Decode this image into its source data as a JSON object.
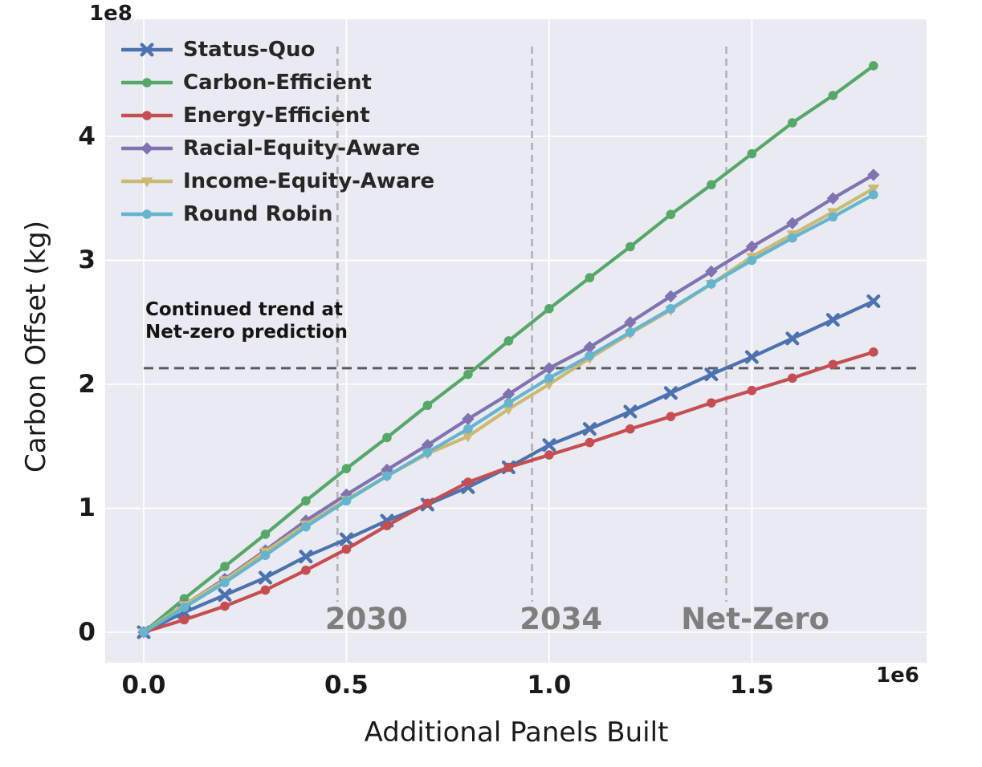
{
  "chart_data": {
    "type": "line",
    "xlabel": "Additional Panels Built",
    "ylabel": "Carbon Offset (kg)",
    "x_offset_label": "1e6",
    "y_offset_label": "1e8",
    "xlim": [
      -0.095,
      1.931
    ],
    "ylim": [
      -0.246,
      4.945
    ],
    "grid": true,
    "legend_position": "upper left",
    "xticks": {
      "values": [
        0.0,
        0.5,
        1.0,
        1.5
      ],
      "labels": [
        "0.0",
        "0.5",
        "1.0",
        "1.5"
      ]
    },
    "yticks": {
      "values": [
        0,
        1,
        2,
        3,
        4
      ],
      "labels": [
        "0",
        "1",
        "2",
        "3",
        "4"
      ]
    },
    "x": [
      0,
      0.1,
      0.2,
      0.3,
      0.4,
      0.5,
      0.6,
      0.7,
      0.8,
      0.9,
      1.0,
      1.1,
      1.2,
      1.3,
      1.4,
      1.5,
      1.6,
      1.7,
      1.8
    ],
    "series": [
      {
        "name": "Status-Quo",
        "color": "#4c72b0",
        "marker": "x",
        "values": [
          0,
          0.16,
          0.3,
          0.44,
          0.61,
          0.75,
          0.9,
          1.03,
          1.17,
          1.33,
          1.51,
          1.64,
          1.78,
          1.93,
          2.08,
          2.22,
          2.37,
          2.52,
          2.67
        ]
      },
      {
        "name": "Carbon-Efficient",
        "color": "#55a868",
        "marker": "circle",
        "values": [
          0,
          0.27,
          0.53,
          0.79,
          1.06,
          1.32,
          1.57,
          1.83,
          2.08,
          2.35,
          2.61,
          2.86,
          3.11,
          3.37,
          3.61,
          3.86,
          4.11,
          4.33,
          4.57
        ]
      },
      {
        "name": "Energy-Efficient",
        "color": "#c44e52",
        "marker": "circle",
        "values": [
          0,
          0.1,
          0.21,
          0.34,
          0.5,
          0.67,
          0.86,
          1.04,
          1.21,
          1.33,
          1.43,
          1.53,
          1.64,
          1.74,
          1.85,
          1.95,
          2.05,
          2.16,
          2.26
        ]
      },
      {
        "name": "Racial-Equity-Aware",
        "color": "#8172b2",
        "marker": "diamond",
        "values": [
          0,
          0.22,
          0.43,
          0.66,
          0.9,
          1.11,
          1.31,
          1.51,
          1.72,
          1.92,
          2.13,
          2.3,
          2.5,
          2.71,
          2.91,
          3.11,
          3.3,
          3.5,
          3.69
        ]
      },
      {
        "name": "Income-Equity-Aware",
        "color": "#ccb974",
        "marker": "triangle-down",
        "values": [
          0,
          0.22,
          0.42,
          0.65,
          0.87,
          1.07,
          1.26,
          1.44,
          1.58,
          1.8,
          2.0,
          2.21,
          2.41,
          2.6,
          2.81,
          3.03,
          3.21,
          3.39,
          3.58
        ]
      },
      {
        "name": "Round Robin",
        "color": "#64b5cd",
        "marker": "circle",
        "values": [
          0,
          0.2,
          0.4,
          0.62,
          0.85,
          1.06,
          1.26,
          1.45,
          1.64,
          1.85,
          2.05,
          2.23,
          2.42,
          2.61,
          2.81,
          3.0,
          3.18,
          3.35,
          3.53
        ]
      }
    ],
    "vlines": [
      {
        "x": 0.478,
        "label": "2030"
      },
      {
        "x": 0.958,
        "label": "2034"
      },
      {
        "x": 1.437,
        "label": "Net-Zero"
      }
    ],
    "hline": {
      "y": 2.13
    },
    "annotation": {
      "line1": "Continued trend at",
      "line2": "Net-zero prediction"
    },
    "style": {
      "plot_bg": "#eaeaf2",
      "grid_color": "#ffffff",
      "vline_color": "#b2b2b2",
      "vline_label_color": "#7e7e7e",
      "hline_color": "#5a5a5a",
      "text_color": "#1a1a1a"
    }
  }
}
